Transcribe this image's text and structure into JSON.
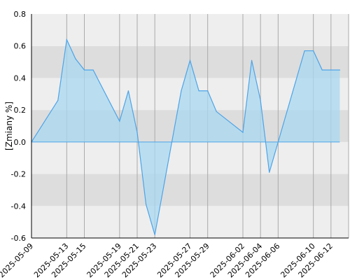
{
  "chart_data": {
    "type": "area",
    "ylabel": "[Zmiany %]",
    "ylim": [
      -0.6,
      0.8
    ],
    "yticks": [
      -0.6,
      -0.4,
      -0.2,
      0.0,
      0.2,
      0.4,
      0.6,
      0.8
    ],
    "ytick_labels": [
      "-0.6",
      "-0.4",
      "-0.2",
      "0.0",
      "0.2",
      "0.4",
      "0.6",
      "0.8"
    ],
    "xlim": [
      "2025-05-09",
      "2025-06-14"
    ],
    "xticks": [
      "2025-05-09",
      "2025-05-13",
      "2025-05-15",
      "2025-05-19",
      "2025-05-21",
      "2025-05-23",
      "2025-05-27",
      "2025-05-29",
      "2025-06-02",
      "2025-06-04",
      "2025-06-06",
      "2025-06-10",
      "2025-06-12"
    ],
    "grid": true,
    "colors": {
      "line": "#4da3e8",
      "fill": "#a8d8f0",
      "band_light": "#eeeeee",
      "band_dark": "#dddddd",
      "vgrid": "#aaaaaa",
      "zero_line": "#4da3e8"
    },
    "series": [
      {
        "x": [
          "2025-05-09",
          "2025-05-12",
          "2025-05-13",
          "2025-05-14",
          "2025-05-15",
          "2025-05-16",
          "2025-05-19",
          "2025-05-20",
          "2025-05-21",
          "2025-05-22",
          "2025-05-23",
          "2025-05-26",
          "2025-05-27",
          "2025-05-28",
          "2025-05-29",
          "2025-05-30",
          "2025-06-02",
          "2025-06-03",
          "2025-06-04",
          "2025-06-05",
          "2025-06-06",
          "2025-06-09",
          "2025-06-10",
          "2025-06-11",
          "2025-06-12",
          "2025-06-13"
        ],
        "y": [
          0.0,
          0.26,
          0.64,
          0.52,
          0.45,
          0.45,
          0.13,
          0.32,
          0.06,
          -0.39,
          -0.58,
          0.32,
          0.51,
          0.32,
          0.32,
          0.19,
          0.06,
          0.51,
          0.26,
          -0.19,
          0.0,
          0.57,
          0.57,
          0.45,
          0.45,
          0.45
        ]
      }
    ]
  }
}
